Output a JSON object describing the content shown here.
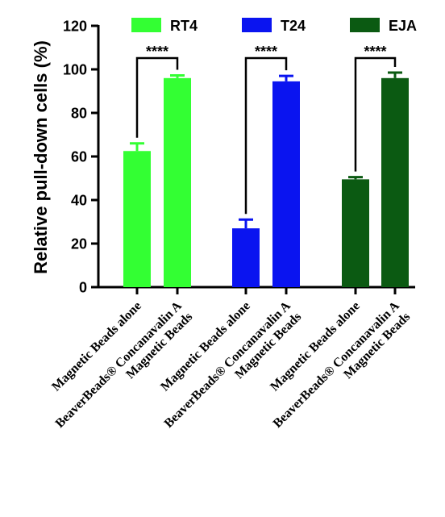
{
  "chart_data": {
    "type": "bar",
    "title": "",
    "xlabel": "",
    "ylabel": "Relative pull-down cells (%)",
    "ylim": [
      0,
      120
    ],
    "yticks": [
      0,
      20,
      40,
      60,
      80,
      100,
      120
    ],
    "grid": false,
    "legend_position": "top",
    "legend": [
      {
        "name": "RT4",
        "color": "#33ff33"
      },
      {
        "name": "T24",
        "color": "#0a14f0"
      },
      {
        "name": "EJA",
        "color": "#0b5a12"
      }
    ],
    "categories": [
      [
        "Magnetic Beads alone"
      ],
      [
        "BeaverBeads® Concanavalin A",
        "Magnetic Beads"
      ],
      [
        "Magnetic Beads alone"
      ],
      [
        "BeaverBeads® Concanavalin A",
        "Magnetic Beads"
      ],
      [
        "Magnetic Beads alone"
      ],
      [
        "BeaverBeads® Concanavalin A",
        "Magnetic Beads"
      ]
    ],
    "bars": [
      {
        "group": "RT4",
        "value": 62.5,
        "error": 3.5,
        "color": "#33ff33"
      },
      {
        "group": "RT4",
        "value": 96,
        "error": 1.2,
        "color": "#33ff33"
      },
      {
        "group": "T24",
        "value": 27,
        "error": 4,
        "color": "#0a14f0"
      },
      {
        "group": "T24",
        "value": 94.5,
        "error": 2.5,
        "color": "#0a14f0"
      },
      {
        "group": "EJA",
        "value": 49.5,
        "error": 1,
        "color": "#0b5a12"
      },
      {
        "group": "EJA",
        "value": 96,
        "error": 2.5,
        "color": "#0b5a12"
      }
    ],
    "significance": [
      {
        "from": 0,
        "to": 1,
        "label": "****"
      },
      {
        "from": 2,
        "to": 3,
        "label": "****"
      },
      {
        "from": 4,
        "to": 5,
        "label": "****"
      }
    ]
  }
}
